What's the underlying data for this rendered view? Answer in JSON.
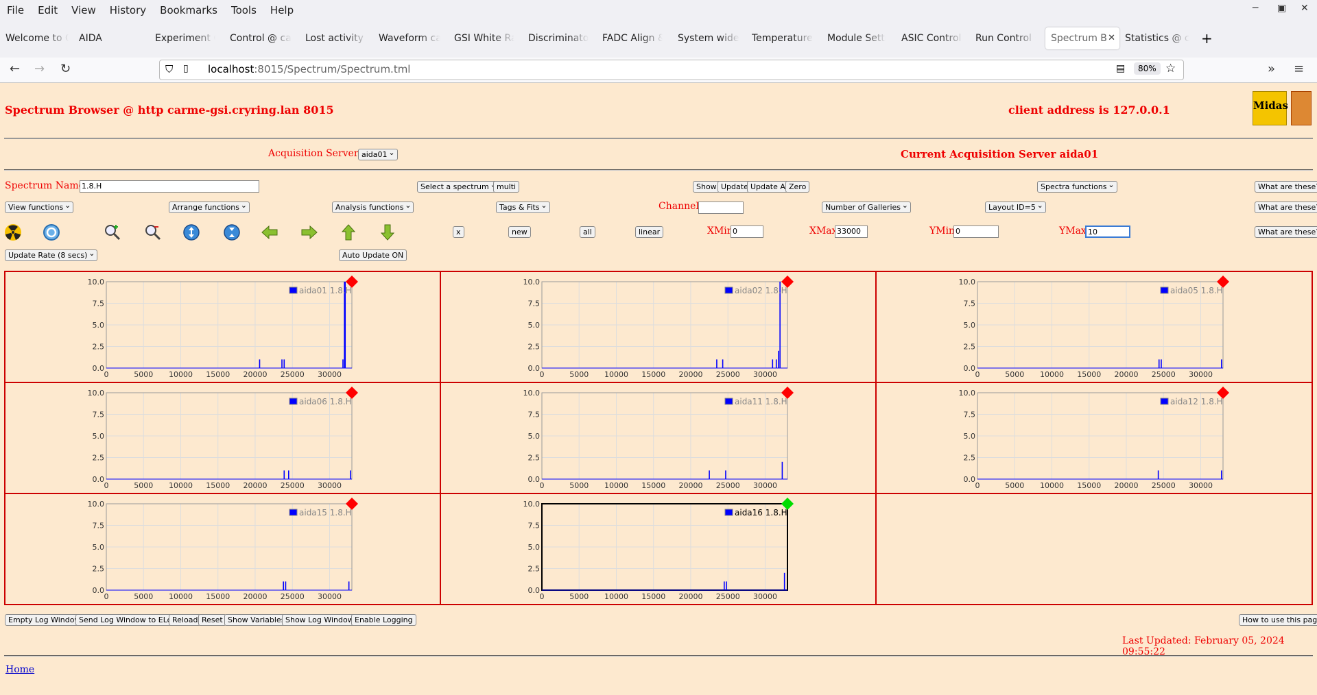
{
  "browser": {
    "menu": [
      "File",
      "Edit",
      "View",
      "History",
      "Bookmarks",
      "Tools",
      "Help"
    ],
    "tabs": [
      "Welcome to C",
      "AIDA",
      "Experiment C",
      "Control @ ca",
      "Lost activity n",
      "Waveform ca",
      "GSI White Ra",
      "Discriminato",
      "FADC Align &",
      "System wide",
      "Temperature",
      "Module Setti",
      "ASIC Control",
      "Run Control (",
      "Spectrum B",
      "Statistics @ c"
    ],
    "active_tab_index": 14,
    "url_host": "localhost",
    "url_path": ":8015/Spectrum/Spectrum.tml",
    "zoom": "80%"
  },
  "header": {
    "title": "Spectrum Browser @ http carme-gsi.cryring.lan 8015",
    "client": "client address is 127.0.0.1",
    "logo_text": "Midas"
  },
  "acquisition": {
    "label": "Acquisition Servers",
    "selected": "aida01",
    "current": "Current Acquisition Server aida01"
  },
  "controls": {
    "spectrum_name_label": "Spectrum Name:",
    "spectrum_name_value": "1.8.H",
    "select_spectrum": "Select a spectrum",
    "multi": "multi",
    "show": "Show",
    "update": "Update",
    "update_all": "Update All",
    "zero": "Zero",
    "spectra_functions": "Spectra functions",
    "what1": "What are these?",
    "what2": "What are these?",
    "what3": "What are these?",
    "view_functions": "View functions",
    "arrange_functions": "Arrange functions",
    "analysis_functions": "Analysis functions",
    "tags_fits": "Tags & Fits",
    "channel_label": "Channel:",
    "channel_value": "",
    "num_galleries": "Number of Galleries",
    "layout": "Layout ID=5",
    "x_btn": "x",
    "new_btn": "new",
    "all_btn": "all",
    "linear_btn": "linear",
    "xmin_label": "XMin",
    "xmin": "0",
    "xmax_label": "XMax",
    "xmax": "33000",
    "ymin_label": "YMin",
    "ymin": "0",
    "ymax_label": "YMax",
    "ymax": "10",
    "update_rate": "Update Rate (8 secs)",
    "auto_update": "Auto Update ON"
  },
  "chart_data": [
    {
      "type": "bar",
      "series": [
        {
          "name": "aida01 1.8.H",
          "x": [
            20600,
            23600,
            23900,
            31800,
            32000,
            32100
          ],
          "values": [
            1,
            1,
            1,
            1,
            10,
            10
          ]
        }
      ],
      "xlim": [
        0,
        33000
      ],
      "ylim": [
        0,
        10
      ],
      "status": "red"
    },
    {
      "type": "bar",
      "series": [
        {
          "name": "aida02 1.8.H",
          "x": [
            23500,
            24300,
            31000,
            31500,
            31800,
            32000
          ],
          "values": [
            1,
            1,
            1,
            1,
            2,
            10
          ]
        }
      ],
      "xlim": [
        0,
        33000
      ],
      "ylim": [
        0,
        10
      ],
      "status": "red"
    },
    {
      "type": "bar",
      "series": [
        {
          "name": "aida05 1.8.H",
          "x": [
            24400,
            24700,
            32800
          ],
          "values": [
            1,
            1,
            1
          ]
        }
      ],
      "xlim": [
        0,
        33000
      ],
      "ylim": [
        0,
        10
      ],
      "status": "red"
    },
    {
      "type": "bar",
      "series": [
        {
          "name": "aida06 1.8.H",
          "x": [
            23900,
            24500,
            32800
          ],
          "values": [
            1,
            1,
            1
          ]
        }
      ],
      "xlim": [
        0,
        33000
      ],
      "ylim": [
        0,
        10
      ],
      "status": "red"
    },
    {
      "type": "bar",
      "series": [
        {
          "name": "aida11 1.8.H",
          "x": [
            22500,
            24700,
            32300
          ],
          "values": [
            1,
            1,
            2
          ]
        }
      ],
      "xlim": [
        0,
        33000
      ],
      "ylim": [
        0,
        10
      ],
      "status": "red"
    },
    {
      "type": "bar",
      "series": [
        {
          "name": "aida12 1.8.H",
          "x": [
            24300,
            32800
          ],
          "values": [
            1,
            1
          ]
        }
      ],
      "xlim": [
        0,
        33000
      ],
      "ylim": [
        0,
        10
      ],
      "status": "red"
    },
    {
      "type": "bar",
      "series": [
        {
          "name": "aida15 1.8.H",
          "x": [
            23800,
            24100,
            32600
          ],
          "values": [
            1,
            1,
            1
          ]
        }
      ],
      "xlim": [
        0,
        33000
      ],
      "ylim": [
        0,
        10
      ],
      "status": "red"
    },
    {
      "type": "bar",
      "series": [
        {
          "name": "aida16 1.8.H",
          "x": [
            24500,
            24800,
            32600
          ],
          "values": [
            1,
            1,
            2
          ]
        }
      ],
      "xlim": [
        0,
        33000
      ],
      "ylim": [
        0,
        10
      ],
      "status": "green",
      "selected": true
    }
  ],
  "axis": {
    "xticks": [
      "0",
      "5000",
      "10000",
      "15000",
      "20000",
      "25000",
      "30000"
    ],
    "yticks": [
      "0.0",
      "2.5",
      "5.0",
      "7.5",
      "10.0"
    ]
  },
  "footer": {
    "buttons": [
      "Empty Log Window",
      "Send Log Window to ELog",
      "Reload",
      "Reset",
      "Show Variables",
      "Show Log Window",
      "Enable Logging"
    ],
    "how_to": "How to use this page",
    "last_updated": "Last Updated: February 05, 2024 09:55:22",
    "home": "Home"
  },
  "colors": {
    "accent": "#e00000",
    "bar": "#0000ff",
    "status_red": "#ff0000",
    "status_green": "#00dd00",
    "background": "#fde9cf"
  }
}
